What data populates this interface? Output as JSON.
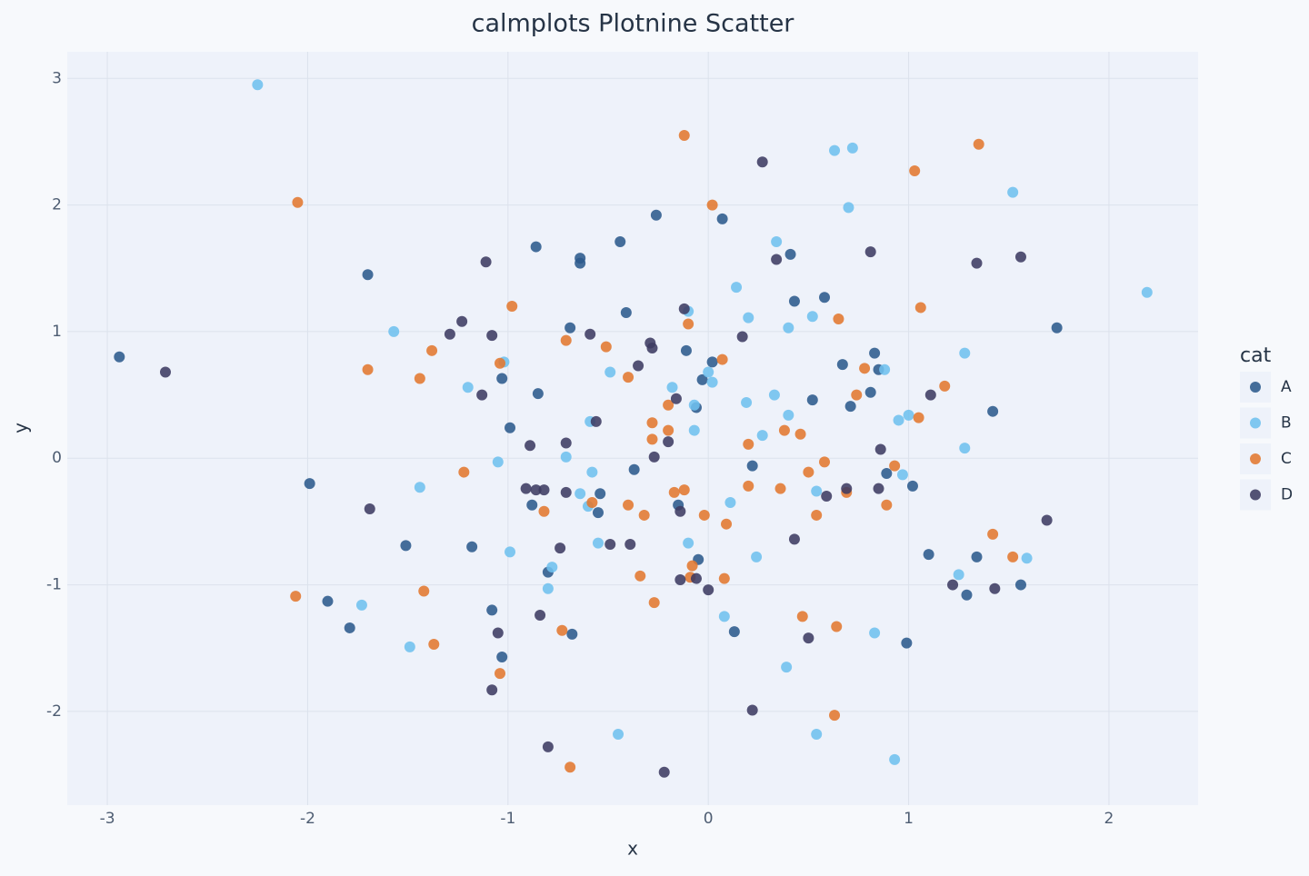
{
  "chart_data": {
    "type": "scatter",
    "title": "calmplots Plotnine Scatter",
    "x_label": "x",
    "y_label": "y",
    "legend_title": "cat",
    "legend_position": "right",
    "xlim": [
      -3.2,
      2.445
    ],
    "ylim": [
      -2.74,
      3.21
    ],
    "xticks": [
      -3,
      -2,
      -1,
      0,
      1,
      2
    ],
    "yticks": [
      -2,
      -1,
      0,
      1,
      2,
      3
    ],
    "grid": true,
    "series": [
      {
        "name": "A",
        "color": "#2c5a8c",
        "x": [
          -2.94,
          -1.99,
          -1.7,
          -1.51,
          -1.9,
          -1.79,
          -1.18,
          -1.08,
          -1.03,
          -1.03,
          -0.99,
          -0.86,
          -0.85,
          -0.88,
          -0.8,
          -0.68,
          -0.69,
          -0.64,
          -0.64,
          -0.55,
          -0.54,
          -0.44,
          -0.41,
          -0.37,
          -0.26,
          -0.15,
          -0.11,
          -0.06,
          -0.05,
          -0.03,
          0.02,
          0.07,
          0.13,
          0.22,
          0.41,
          0.43,
          0.52,
          0.58,
          0.67,
          0.71,
          0.81,
          0.83,
          0.85,
          0.89,
          0.99,
          1.02,
          1.1,
          1.29,
          1.34,
          1.42,
          1.56,
          1.74
        ],
        "values": [
          0.8,
          -0.2,
          1.45,
          -0.69,
          -1.13,
          -1.34,
          -0.7,
          -1.2,
          -1.57,
          0.63,
          0.24,
          1.67,
          0.51,
          -0.37,
          -0.9,
          -1.39,
          1.03,
          1.58,
          1.54,
          -0.43,
          -0.28,
          1.71,
          1.15,
          -0.09,
          1.92,
          -0.37,
          0.85,
          0.4,
          -0.8,
          0.62,
          0.76,
          1.89,
          -1.37,
          -0.06,
          1.61,
          1.24,
          0.46,
          1.27,
          0.74,
          0.41,
          0.52,
          0.83,
          0.7,
          -0.12,
          -1.46,
          -0.22,
          -0.76,
          -1.08,
          -0.78,
          0.37,
          -1.0,
          1.03
        ]
      },
      {
        "name": "B",
        "color": "#6fc0ee",
        "x": [
          -2.25,
          -1.57,
          -1.44,
          -1.73,
          -1.49,
          -1.2,
          -1.05,
          -1.02,
          -0.99,
          -0.8,
          -0.78,
          -0.71,
          -0.64,
          -0.59,
          -0.6,
          -0.58,
          -0.55,
          -0.49,
          -0.45,
          -0.18,
          -0.1,
          -0.1,
          -0.07,
          -0.07,
          0.0,
          0.02,
          0.08,
          0.11,
          0.14,
          0.19,
          0.2,
          0.24,
          0.27,
          0.33,
          0.34,
          0.39,
          0.4,
          0.4,
          0.52,
          0.54,
          0.54,
          0.63,
          0.7,
          0.72,
          0.83,
          0.88,
          0.93,
          0.95,
          0.97,
          1.0,
          1.25,
          1.28,
          1.28,
          1.52,
          1.59,
          2.19
        ],
        "values": [
          2.95,
          1.0,
          -0.23,
          -1.16,
          -1.49,
          0.56,
          -0.03,
          0.76,
          -0.74,
          -1.03,
          -0.86,
          0.01,
          -0.28,
          0.29,
          -0.38,
          -0.11,
          -0.67,
          0.68,
          -2.18,
          0.56,
          1.16,
          -0.67,
          0.42,
          0.22,
          0.68,
          0.6,
          -1.25,
          -0.35,
          1.35,
          0.44,
          1.11,
          -0.78,
          0.18,
          0.5,
          1.71,
          -1.65,
          0.34,
          1.03,
          1.12,
          -0.26,
          -2.18,
          2.43,
          1.98,
          2.45,
          -1.38,
          0.7,
          -2.38,
          0.3,
          -0.13,
          0.34,
          -0.92,
          0.08,
          0.83,
          2.1,
          -0.79,
          1.31
        ]
      },
      {
        "name": "C",
        "color": "#e2782f",
        "x": [
          -2.05,
          -2.06,
          -1.7,
          -1.44,
          -1.38,
          -1.42,
          -1.37,
          -1.22,
          -1.04,
          -1.04,
          -0.98,
          -0.82,
          -0.73,
          -0.71,
          -0.69,
          -0.58,
          -0.51,
          -0.4,
          -0.4,
          -0.34,
          -0.32,
          -0.28,
          -0.28,
          -0.27,
          -0.2,
          -0.2,
          -0.17,
          -0.12,
          -0.12,
          -0.1,
          -0.09,
          -0.08,
          -0.02,
          0.02,
          0.07,
          0.08,
          0.09,
          0.2,
          0.2,
          0.36,
          0.38,
          0.46,
          0.47,
          0.5,
          0.54,
          0.58,
          0.64,
          0.63,
          0.65,
          0.69,
          0.74,
          0.78,
          0.89,
          0.93,
          1.03,
          1.05,
          1.06,
          1.18,
          1.35,
          1.42,
          1.52
        ],
        "values": [
          2.02,
          -1.09,
          0.7,
          0.63,
          0.85,
          -1.05,
          -1.47,
          -0.11,
          0.75,
          -1.7,
          1.2,
          -0.42,
          -1.36,
          0.93,
          -2.44,
          -0.35,
          0.88,
          0.64,
          -0.37,
          -0.93,
          -0.45,
          0.28,
          0.15,
          -1.14,
          0.22,
          0.42,
          -0.27,
          2.55,
          -0.25,
          1.06,
          -0.94,
          -0.85,
          -0.45,
          2.0,
          0.78,
          -0.95,
          -0.52,
          0.11,
          -0.22,
          -0.24,
          0.22,
          0.19,
          -1.25,
          -0.11,
          -0.45,
          -0.03,
          -1.33,
          -2.03,
          1.1,
          -0.27,
          0.5,
          0.71,
          -0.37,
          -0.06,
          2.27,
          0.32,
          1.19,
          0.57,
          2.48,
          -0.6,
          -0.78
        ]
      },
      {
        "name": "D",
        "color": "#3d3b62",
        "x": [
          -2.71,
          -1.69,
          -1.29,
          -1.23,
          -1.13,
          -1.11,
          -1.08,
          -1.08,
          -1.05,
          -0.91,
          -0.89,
          -0.86,
          -0.82,
          -0.84,
          -0.8,
          -0.74,
          -0.71,
          -0.71,
          -0.59,
          -0.56,
          -0.49,
          -0.39,
          -0.35,
          -0.29,
          -0.28,
          -0.27,
          -0.22,
          -0.2,
          -0.16,
          -0.14,
          -0.14,
          -0.12,
          -0.06,
          0.0,
          0.17,
          0.22,
          0.27,
          0.34,
          0.43,
          0.5,
          0.59,
          0.69,
          0.81,
          0.85,
          0.86,
          1.11,
          1.22,
          1.34,
          1.43,
          1.56,
          1.69
        ],
        "values": [
          0.68,
          -0.4,
          0.98,
          1.08,
          0.5,
          1.55,
          0.97,
          -1.83,
          -1.38,
          -0.24,
          0.1,
          -0.25,
          -0.25,
          -1.24,
          -2.28,
          -0.71,
          0.12,
          -0.27,
          0.98,
          0.29,
          -0.68,
          -0.68,
          0.73,
          0.91,
          0.87,
          0.01,
          -2.48,
          0.13,
          0.47,
          -0.96,
          -0.42,
          1.18,
          -0.95,
          -1.04,
          0.96,
          -1.99,
          2.34,
          1.57,
          -0.64,
          -1.42,
          -0.3,
          -0.24,
          1.63,
          -0.24,
          0.07,
          0.5,
          -1.0,
          1.54,
          -1.03,
          1.59,
          -0.49
        ]
      }
    ]
  }
}
